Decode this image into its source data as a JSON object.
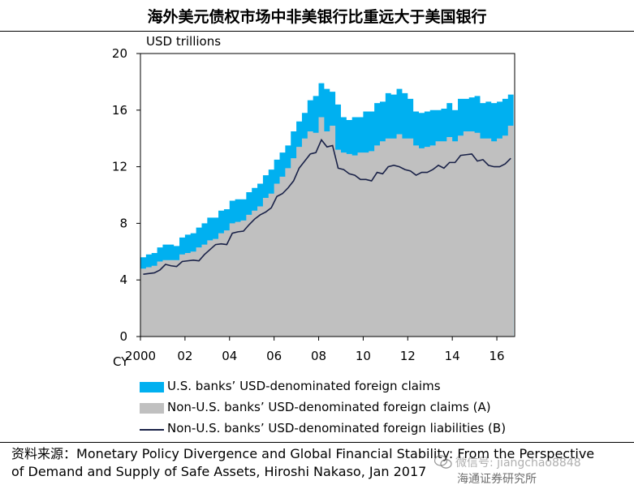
{
  "title": "海外美元债权市场中非美银行比重远大于美国银行",
  "chart_data": {
    "type": "area",
    "unit_label": "USD trillions",
    "x_axis_prefix": "CY",
    "ylim": [
      0,
      20
    ],
    "yticks": [
      0,
      4,
      8,
      12,
      16,
      20
    ],
    "ytick_labels": [
      "0",
      "4",
      "8",
      "12",
      "16",
      "20"
    ],
    "xlim": [
      2000,
      2016.8
    ],
    "xticks": [
      2000,
      2002,
      2004,
      2006,
      2008,
      2010,
      2012,
      2014,
      2016
    ],
    "xtick_labels": [
      "2000",
      "02",
      "04",
      "06",
      "08",
      "10",
      "12",
      "14",
      "16"
    ],
    "x": [
      2000.0,
      2000.25,
      2000.5,
      2000.75,
      2001.0,
      2001.25,
      2001.5,
      2001.75,
      2002.0,
      2002.25,
      2002.5,
      2002.75,
      2003.0,
      2003.25,
      2003.5,
      2003.75,
      2004.0,
      2004.25,
      2004.5,
      2004.75,
      2005.0,
      2005.25,
      2005.5,
      2005.75,
      2006.0,
      2006.25,
      2006.5,
      2006.75,
      2007.0,
      2007.25,
      2007.5,
      2007.75,
      2008.0,
      2008.25,
      2008.5,
      2008.75,
      2009.0,
      2009.25,
      2009.5,
      2009.75,
      2010.0,
      2010.25,
      2010.5,
      2010.75,
      2011.0,
      2011.25,
      2011.5,
      2011.75,
      2012.0,
      2012.25,
      2012.5,
      2012.75,
      2013.0,
      2013.25,
      2013.5,
      2013.75,
      2014.0,
      2014.25,
      2014.5,
      2014.75,
      2015.0,
      2015.25,
      2015.5,
      2015.75,
      2016.0,
      2016.25,
      2016.5
    ],
    "series": [
      {
        "name": "U.S. banks’ USD-denominated foreign claims",
        "kind": "area",
        "color": "#00b0f0",
        "values": [
          5.6,
          5.8,
          5.9,
          6.3,
          6.5,
          6.5,
          6.4,
          7.0,
          7.2,
          7.3,
          7.7,
          8.0,
          8.4,
          8.4,
          8.9,
          9.0,
          9.6,
          9.7,
          9.7,
          10.2,
          10.5,
          10.8,
          11.4,
          11.8,
          12.5,
          13.0,
          13.5,
          14.5,
          15.2,
          15.8,
          16.7,
          17.0,
          17.9,
          17.5,
          17.3,
          16.4,
          15.5,
          15.3,
          15.5,
          15.5,
          15.9,
          15.9,
          16.5,
          16.6,
          17.2,
          17.1,
          17.5,
          17.2,
          16.8,
          15.9,
          15.8,
          15.9,
          16.0,
          16.0,
          16.1,
          16.5,
          16.0,
          16.8,
          16.8,
          16.9,
          17.0,
          16.5,
          16.6,
          16.5,
          16.6,
          16.8,
          17.1
        ]
      },
      {
        "name": "Non-U.S. banks’ USD-denominated foreign claims (A)",
        "kind": "area",
        "color": "#c0c0c0",
        "values": [
          4.8,
          4.9,
          5.0,
          5.3,
          5.4,
          5.4,
          5.4,
          5.8,
          5.9,
          6.0,
          6.3,
          6.5,
          6.8,
          6.9,
          7.3,
          7.5,
          8.0,
          8.1,
          8.2,
          8.6,
          8.9,
          9.2,
          9.8,
          10.1,
          10.8,
          11.3,
          11.9,
          12.6,
          13.4,
          14.0,
          14.5,
          14.4,
          15.5,
          14.5,
          14.9,
          13.2,
          13.0,
          12.9,
          12.8,
          13.0,
          13.0,
          13.1,
          13.5,
          13.8,
          14.0,
          14.0,
          14.3,
          14.0,
          14.0,
          13.5,
          13.3,
          13.4,
          13.5,
          13.8,
          13.8,
          14.1,
          13.8,
          14.2,
          14.5,
          14.5,
          14.4,
          14.0,
          14.0,
          13.8,
          14.0,
          14.2,
          14.9
        ]
      },
      {
        "name": "Non-U.S. banks’ USD-denominated foreign liabilities (B)",
        "kind": "line",
        "color": "#1a2248",
        "values": [
          4.4,
          4.45,
          4.5,
          4.7,
          5.1,
          5.0,
          4.95,
          5.3,
          5.35,
          5.4,
          5.35,
          5.8,
          6.15,
          6.5,
          6.55,
          6.5,
          7.3,
          7.4,
          7.45,
          7.9,
          8.3,
          8.6,
          8.8,
          9.1,
          9.9,
          10.1,
          10.5,
          11.0,
          11.9,
          12.4,
          12.9,
          13.0,
          13.9,
          13.4,
          13.5,
          11.9,
          11.8,
          11.5,
          11.4,
          11.1,
          11.1,
          11.0,
          11.6,
          11.5,
          12.0,
          12.1,
          12.0,
          11.8,
          11.7,
          11.4,
          11.6,
          11.6,
          11.8,
          12.1,
          11.9,
          12.3,
          12.3,
          12.8,
          12.85,
          12.9,
          12.4,
          12.5,
          12.1,
          12.0,
          12.0,
          12.2,
          12.6
        ]
      }
    ]
  },
  "legend": {
    "items": [
      {
        "label": "U.S. banks’ USD-denominated foreign claims",
        "color": "#00b0f0"
      },
      {
        "label": "Non-U.S. banks’ USD-denominated foreign claims (A)",
        "color": "#c0c0c0"
      },
      {
        "label": "Non-U.S. banks’ USD-denominated foreign liabilities (B)",
        "color": "#1a2248"
      }
    ]
  },
  "source": {
    "prefix": "资料来源：",
    "line1": "Monetary Policy Divergence and Global Financial Stability: From the Perspective",
    "line2": "of Demand and Supply of Safe Assets, Hiroshi Nakaso, Jan 2017"
  },
  "watermark": {
    "wechat_text": "微信号: jiangchao8848",
    "org_text": "海通证券研究所",
    "icon": "wechat-icon"
  }
}
